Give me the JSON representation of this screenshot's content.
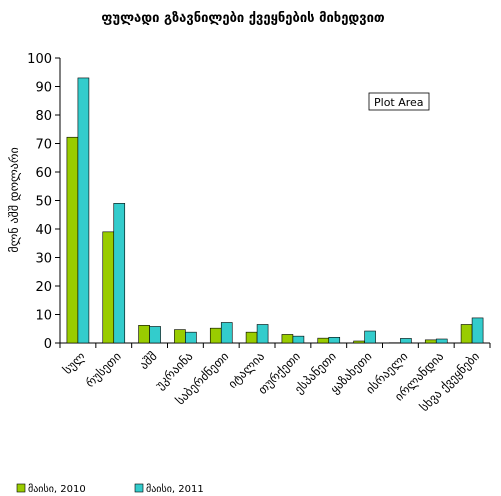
{
  "chart_data": {
    "type": "bar",
    "title": "ფულადი გზავნილები ქვეყნების მიხედვით",
    "xlabel": "",
    "ylabel": "მლნ აშშ დოლარი",
    "ylim": [
      0,
      100
    ],
    "yticks": [
      0,
      10,
      20,
      30,
      40,
      50,
      60,
      70,
      80,
      90,
      100
    ],
    "categories": [
      "სულ",
      "რუსეთი",
      "აშშ",
      "უკრაინა",
      "საბერძნეთი",
      "იტალია",
      "თურქეთი",
      "ესპანეთი",
      "ყაზახეთი",
      "ისრაელი",
      "ირლანდია",
      "სხვა ქვეყნები"
    ],
    "series": [
      {
        "name": "მაისი, 2010",
        "color": "#99CC00",
        "values": [
          72.2,
          39,
          6.2,
          4.7,
          5.2,
          3.8,
          3.0,
          1.7,
          0.7,
          0.1,
          1.1,
          6.5
        ]
      },
      {
        "name": "მაისი, 2011",
        "color": "#33CCCC",
        "values": [
          93,
          49,
          5.8,
          3.8,
          7.2,
          6.5,
          2.4,
          2.0,
          4.2,
          1.6,
          1.4,
          8.8
        ]
      }
    ],
    "grid": false,
    "legend": "bottom-left",
    "tooltip": "Plot Area"
  }
}
